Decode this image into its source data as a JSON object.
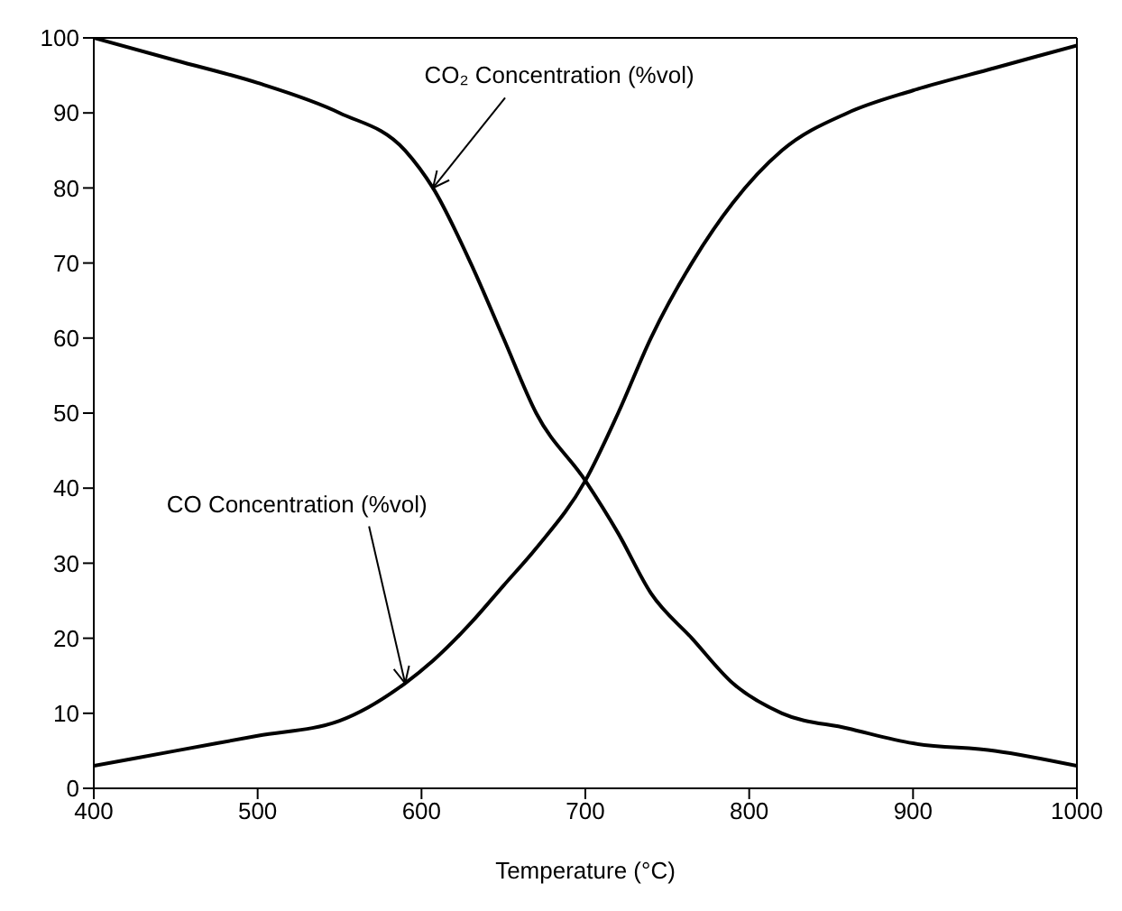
{
  "chart_data": {
    "type": "line",
    "xlabel": "Temperature (°C)",
    "x": [
      400,
      450,
      500,
      550,
      590,
      607,
      630,
      650,
      670,
      700,
      720,
      740,
      765,
      790,
      820,
      860,
      900,
      950,
      1000
    ],
    "series": [
      {
        "color": "#000000",
        "values": [
          100,
          97,
          94,
          90,
          85,
          80,
          70,
          60,
          50,
          41,
          34,
          26,
          20,
          14,
          10,
          8,
          6,
          5,
          3
        ]
      },
      {
        "color": "#000000",
        "values": [
          3,
          5,
          7,
          9,
          14,
          17,
          22,
          27,
          32,
          41,
          50,
          60,
          70,
          78,
          85,
          90,
          93,
          96,
          99
        ]
      }
    ],
    "xlim": [
      400,
      1000
    ],
    "xticks": [
      400,
      500,
      600,
      700,
      800,
      900,
      1000
    ],
    "ylim": [
      0,
      100
    ],
    "yticks": [
      0,
      10,
      20,
      30,
      40,
      50,
      60,
      70,
      80,
      90,
      100
    ],
    "grid": false,
    "legend": false,
    "marker": "none",
    "line_style": "solid",
    "annotations": [
      {
        "text": "CO₂ Concentration (%vol)",
        "x": 607,
        "y": 80
      },
      {
        "text": "CO Concentration (%vol)",
        "x": 590,
        "y": 14
      }
    ]
  }
}
